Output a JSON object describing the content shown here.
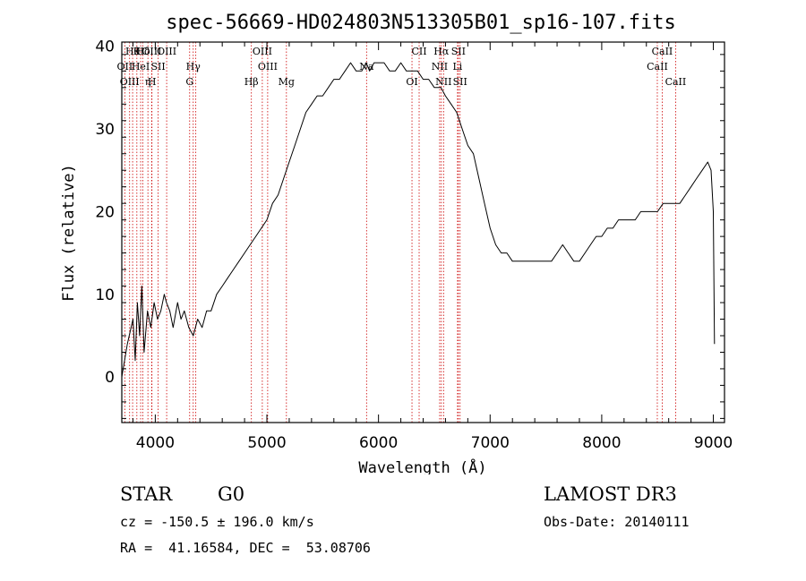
{
  "chart_data": {
    "type": "line",
    "title": "spec-56669-HD024803N513305B01_sp16-107.fits",
    "xlabel": "Wavelength (Å)",
    "ylabel": "Flux (relative)",
    "xlim": [
      3700,
      9100
    ],
    "ylim": [
      -5.5,
      40.5
    ],
    "x_ticks": [
      4000,
      5000,
      6000,
      7000,
      8000,
      9000
    ],
    "y_ticks": [
      0,
      10,
      20,
      30,
      40
    ],
    "series": [
      {
        "x": [
          3700,
          3750,
          3800,
          3820,
          3840,
          3860,
          3880,
          3900,
          3930,
          3960,
          3990,
          4020,
          4050,
          4080,
          4100,
          4130,
          4160,
          4200,
          4230,
          4260,
          4300,
          4340,
          4380,
          4420,
          4460,
          4500,
          4550,
          4600,
          4650,
          4700,
          4750,
          4800,
          4850,
          4900,
          4950,
          5000,
          5050,
          5100,
          5150,
          5200,
          5250,
          5300,
          5350,
          5400,
          5450,
          5500,
          5550,
          5600,
          5650,
          5700,
          5750,
          5800,
          5850,
          5890,
          5920,
          5960,
          6000,
          6050,
          6100,
          6150,
          6200,
          6250,
          6300,
          6350,
          6400,
          6450,
          6500,
          6560,
          6600,
          6650,
          6700,
          6750,
          6800,
          6850,
          6900,
          6950,
          7000,
          7050,
          7100,
          7150,
          7200,
          7250,
          7300,
          7350,
          7400,
          7450,
          7500,
          7550,
          7600,
          7650,
          7700,
          7750,
          7800,
          7850,
          7900,
          7950,
          8000,
          8050,
          8100,
          8150,
          8200,
          8250,
          8300,
          8350,
          8400,
          8450,
          8500,
          8550,
          8600,
          8650,
          8700,
          8750,
          8800,
          8850,
          8900,
          8950,
          8980,
          9000,
          9010
        ],
        "y": [
          0,
          4,
          7,
          2,
          9,
          5,
          11,
          3,
          8,
          6,
          9,
          7,
          8,
          10,
          9,
          8,
          6,
          9,
          7,
          8,
          6,
          5,
          7,
          6,
          8,
          8,
          10,
          11,
          12,
          13,
          14,
          15,
          16,
          17,
          18,
          19,
          21,
          22,
          24,
          26,
          28,
          30,
          32,
          33,
          34,
          34,
          35,
          36,
          36,
          37,
          38,
          37,
          37,
          38,
          37,
          38,
          38,
          38,
          37,
          37,
          38,
          37,
          37,
          37,
          36,
          36,
          35,
          35,
          34,
          33,
          32,
          30,
          28,
          27,
          24,
          21,
          18,
          16,
          15,
          15,
          14,
          14,
          14,
          14,
          14,
          14,
          14,
          14,
          15,
          16,
          15,
          14,
          14,
          15,
          16,
          17,
          17,
          18,
          18,
          19,
          19,
          19,
          19,
          20,
          20,
          20,
          20,
          21,
          21,
          21,
          21,
          22,
          23,
          24,
          25,
          26,
          25,
          20,
          4
        ]
      }
    ],
    "lines": [
      {
        "x": 3797,
        "label": "Hθ",
        "row": 0
      },
      {
        "x": 3835,
        "label": "K",
        "row": 0
      },
      {
        "x": 3889,
        "label": "Hδ",
        "row": 0
      },
      {
        "x": 3968,
        "label": "OIII",
        "row": 0
      },
      {
        "x": 4102,
        "label": "OIII",
        "row": 0
      },
      {
        "x": 3727,
        "label": "OII",
        "row": 1
      },
      {
        "x": 3869,
        "label": "HeI",
        "row": 1
      },
      {
        "x": 4026,
        "label": "SII",
        "row": 1
      },
      {
        "x": 4340,
        "label": "Hγ",
        "row": 1
      },
      {
        "x": 3770,
        "label": "OIII",
        "row": 2
      },
      {
        "x": 3934,
        "label": "η",
        "row": 2
      },
      {
        "x": 3970,
        "label": "H",
        "row": 2
      },
      {
        "x": 4308,
        "label": "G",
        "row": 2
      },
      {
        "x": 4363,
        "label": "",
        "row": 0
      },
      {
        "x": 4861,
        "label": "Hβ",
        "row": 2
      },
      {
        "x": 4959,
        "label": "OIII",
        "row": 0
      },
      {
        "x": 5007,
        "label": "OIII",
        "row": 1
      },
      {
        "x": 5175,
        "label": "Mg",
        "row": 2
      },
      {
        "x": 5893,
        "label": "Na",
        "row": 1
      },
      {
        "x": 6300,
        "label": "OI",
        "row": 2
      },
      {
        "x": 6364,
        "label": "CII",
        "row": 0
      },
      {
        "x": 6548,
        "label": "NII",
        "row": 1
      },
      {
        "x": 6563,
        "label": "Hα",
        "row": 0
      },
      {
        "x": 6583,
        "label": "NII",
        "row": 2
      },
      {
        "x": 6708,
        "label": "Li",
        "row": 1
      },
      {
        "x": 6716,
        "label": "SII",
        "row": 0
      },
      {
        "x": 6731,
        "label": "SII",
        "row": 2
      },
      {
        "x": 8498,
        "label": "CaII",
        "row": 1
      },
      {
        "x": 8542,
        "label": "CaII",
        "row": 0
      },
      {
        "x": 8662,
        "label": "CaII",
        "row": 2
      }
    ],
    "grid": false,
    "line_color": "#000000",
    "marker_color": "#cc0000"
  },
  "info": {
    "object_class": "STAR",
    "subclass": "G0",
    "survey": "LAMOST DR3",
    "redshift_text": "cz = -150.5 ± 196.0 km/s",
    "obs_date_text": "Obs-Date: 20140111",
    "coords_text": "RA =  41.16584, DEC =  53.08706"
  }
}
